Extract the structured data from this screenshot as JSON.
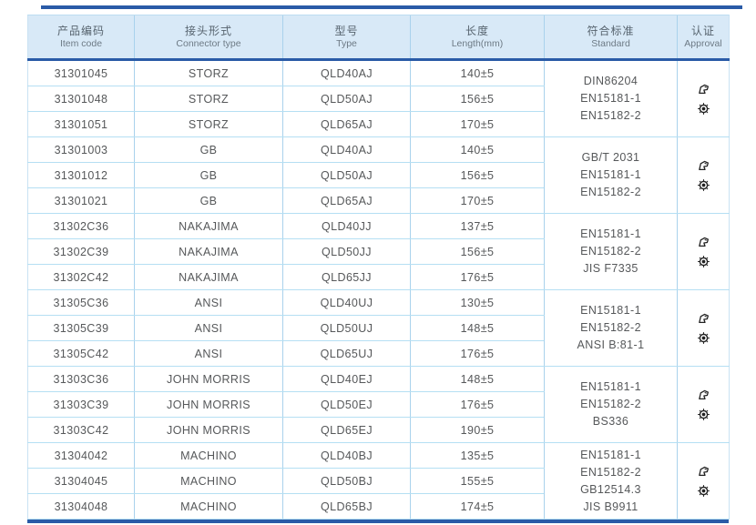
{
  "table": {
    "columns": [
      {
        "cn": "产品编码",
        "en": "Item code"
      },
      {
        "cn": "接头形式",
        "en": "Connector type"
      },
      {
        "cn": "型号",
        "en": "Type"
      },
      {
        "cn": "长度",
        "en": "Length(mm)"
      },
      {
        "cn": "符合标准",
        "en": "Standard"
      },
      {
        "cn": "认证",
        "en": "Approval"
      }
    ],
    "groups": [
      {
        "rows": [
          {
            "code": "31301045",
            "connector": "STORZ",
            "type": "QLD40AJ",
            "length": "140±5"
          },
          {
            "code": "31301048",
            "connector": "STORZ",
            "type": "QLD50AJ",
            "length": "156±5"
          },
          {
            "code": "31301051",
            "connector": "STORZ",
            "type": "QLD65AJ",
            "length": "170±5"
          }
        ],
        "standards": [
          "DIN86204",
          "EN15181-1",
          "EN15182-2"
        ],
        "approval_icons": [
          "certificate-stamp-icon",
          "wheelmark-icon"
        ]
      },
      {
        "rows": [
          {
            "code": "31301003",
            "connector": "GB",
            "type": "QLD40AJ",
            "length": "140±5"
          },
          {
            "code": "31301012",
            "connector": "GB",
            "type": "QLD50AJ",
            "length": "156±5"
          },
          {
            "code": "31301021",
            "connector": "GB",
            "type": "QLD65AJ",
            "length": "170±5"
          }
        ],
        "standards": [
          "GB/T 2031",
          "EN15181-1",
          "EN15182-2"
        ],
        "approval_icons": [
          "certificate-stamp-icon",
          "wheelmark-icon"
        ]
      },
      {
        "rows": [
          {
            "code": "31302C36",
            "connector": "NAKAJIMA",
            "type": "QLD40JJ",
            "length": "137±5"
          },
          {
            "code": "31302C39",
            "connector": "NAKAJIMA",
            "type": "QLD50JJ",
            "length": "156±5"
          },
          {
            "code": "31302C42",
            "connector": "NAKAJIMA",
            "type": "QLD65JJ",
            "length": "176±5"
          }
        ],
        "standards": [
          "EN15181-1",
          "EN15182-2",
          "JIS F7335"
        ],
        "approval_icons": [
          "certificate-stamp-icon",
          "wheelmark-icon"
        ]
      },
      {
        "rows": [
          {
            "code": "31305C36",
            "connector": "ANSI",
            "type": "QLD40UJ",
            "length": "130±5"
          },
          {
            "code": "31305C39",
            "connector": "ANSI",
            "type": "QLD50UJ",
            "length": "148±5"
          },
          {
            "code": "31305C42",
            "connector": "ANSI",
            "type": "QLD65UJ",
            "length": "176±5"
          }
        ],
        "standards": [
          "EN15181-1",
          "EN15182-2",
          "ANSI B:81-1"
        ],
        "approval_icons": [
          "certificate-stamp-icon",
          "wheelmark-icon"
        ]
      },
      {
        "rows": [
          {
            "code": "31303C36",
            "connector": "JOHN MORRIS",
            "type": "QLD40EJ",
            "length": "148±5"
          },
          {
            "code": "31303C39",
            "connector": "JOHN MORRIS",
            "type": "QLD50EJ",
            "length": "176±5"
          },
          {
            "code": "31303C42",
            "connector": "JOHN MORRIS",
            "type": "QLD65EJ",
            "length": "190±5"
          }
        ],
        "standards": [
          "EN15181-1",
          "EN15182-2",
          "BS336"
        ],
        "approval_icons": [
          "certificate-stamp-icon",
          "wheelmark-icon"
        ]
      },
      {
        "rows": [
          {
            "code": "31304042",
            "connector": "MACHINO",
            "type": "QLD40BJ",
            "length": "135±5"
          },
          {
            "code": "31304045",
            "connector": "MACHINO",
            "type": "QLD50BJ",
            "length": "155±5"
          },
          {
            "code": "31304048",
            "connector": "MACHINO",
            "type": "QLD65BJ",
            "length": "174±5"
          }
        ],
        "standards": [
          "EN15181-1",
          "EN15182-2",
          "GB12514.3",
          "JIS B9911"
        ],
        "approval_icons": [
          "certificate-stamp-icon",
          "wheelmark-icon"
        ]
      }
    ],
    "colors": {
      "accent_dark_blue": "#2a5ba7",
      "header_background": "#d8e9f7",
      "grid_light_blue": "#a9d2ec",
      "row_line_blue": "#b5dff3",
      "text_gray": "#58595b",
      "icon_black": "#222222"
    }
  }
}
